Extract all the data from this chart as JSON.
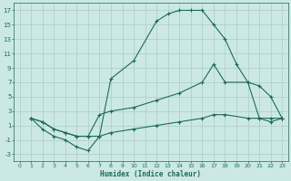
{
  "xlabel": "Humidex (Indice chaleur)",
  "bg_color": "#cce8e4",
  "grid_color": "#aaccca",
  "line_color": "#1a6b5a",
  "xlim": [
    -0.5,
    23.5
  ],
  "ylim": [
    -4,
    18
  ],
  "xticks": [
    0,
    1,
    2,
    3,
    4,
    5,
    6,
    7,
    8,
    9,
    10,
    11,
    12,
    13,
    14,
    15,
    16,
    17,
    18,
    19,
    20,
    21,
    22,
    23
  ],
  "yticks": [
    -3,
    -1,
    1,
    3,
    5,
    7,
    9,
    11,
    13,
    15,
    17
  ],
  "line1_x": [
    1,
    2,
    3,
    4,
    5,
    6,
    7,
    8,
    10,
    12,
    13,
    14,
    15,
    16,
    17,
    18,
    19,
    20,
    21,
    22,
    23
  ],
  "line1_y": [
    2,
    0.5,
    -0.5,
    -1.0,
    -2.0,
    -2.5,
    -0.5,
    7.5,
    10,
    15.5,
    16.5,
    17,
    17,
    17,
    15,
    13,
    9.5,
    7,
    2,
    1.5,
    2
  ],
  "line2_x": [
    1,
    2,
    3,
    4,
    5,
    6,
    7,
    8,
    10,
    12,
    14,
    16,
    17,
    18,
    20,
    21,
    22,
    23
  ],
  "line2_y": [
    2,
    1.5,
    0.5,
    0.0,
    -0.5,
    -0.5,
    2.5,
    3.0,
    3.5,
    4.5,
    5.5,
    7.0,
    9.5,
    7.0,
    7.0,
    6.5,
    5.0,
    2.0
  ],
  "line3_x": [
    1,
    2,
    3,
    4,
    5,
    6,
    7,
    8,
    10,
    12,
    14,
    16,
    17,
    18,
    20,
    21,
    22,
    23
  ],
  "line3_y": [
    2,
    1.5,
    0.5,
    0.0,
    -0.5,
    -0.5,
    -0.5,
    0.0,
    0.5,
    1.0,
    1.5,
    2.0,
    2.5,
    2.5,
    2.0,
    2.0,
    2.0,
    2.0
  ]
}
